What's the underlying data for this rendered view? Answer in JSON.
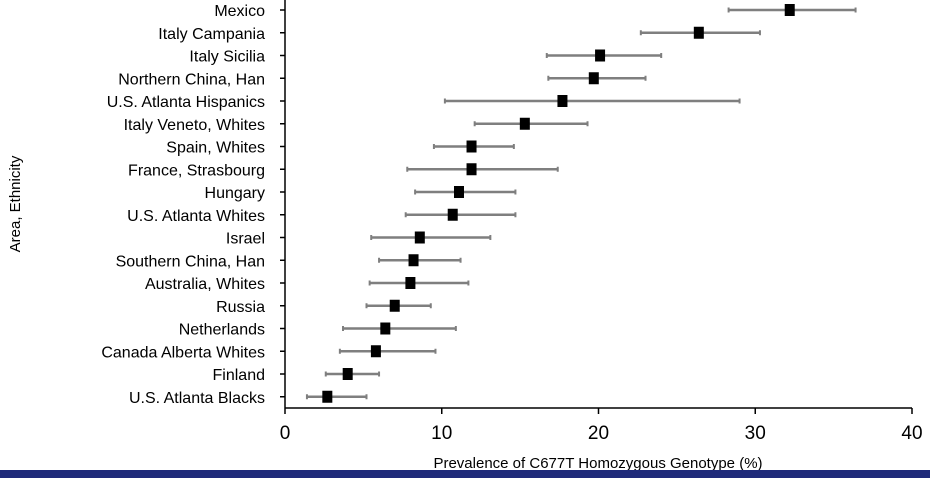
{
  "chart_data": {
    "type": "forest",
    "title": "",
    "xlabel": "Prevalence of C677T Homozygous Genotype (%)",
    "ylabel": "Area, Ethnicity",
    "xlim": [
      0,
      40
    ],
    "xticks": [
      0,
      10,
      20,
      30,
      40
    ],
    "grid": false,
    "rows": [
      {
        "label": "Mexico",
        "value": 32.2,
        "low": 28.3,
        "high": 36.4
      },
      {
        "label": "Italy Campania",
        "value": 26.4,
        "low": 22.7,
        "high": 30.3
      },
      {
        "label": "Italy Sicilia",
        "value": 20.1,
        "low": 16.7,
        "high": 24.0
      },
      {
        "label": "Northern China, Han",
        "value": 19.7,
        "low": 16.8,
        "high": 23.0
      },
      {
        "label": "U.S. Atlanta Hispanics",
        "value": 17.7,
        "low": 10.2,
        "high": 29.0
      },
      {
        "label": "Italy Veneto, Whites",
        "value": 15.3,
        "low": 12.1,
        "high": 19.3
      },
      {
        "label": "Spain, Whites",
        "value": 11.9,
        "low": 9.5,
        "high": 14.6
      },
      {
        "label": "France, Strasbourg",
        "value": 11.9,
        "low": 7.8,
        "high": 17.4
      },
      {
        "label": "Hungary",
        "value": 11.1,
        "low": 8.3,
        "high": 14.7
      },
      {
        "label": "U.S. Atlanta Whites",
        "value": 10.7,
        "low": 7.7,
        "high": 14.7
      },
      {
        "label": "Israel",
        "value": 8.6,
        "low": 5.5,
        "high": 13.1
      },
      {
        "label": "Southern China, Han",
        "value": 8.2,
        "low": 6.0,
        "high": 11.2
      },
      {
        "label": "Australia, Whites",
        "value": 8.0,
        "low": 5.4,
        "high": 11.7
      },
      {
        "label": "Russia",
        "value": 7.0,
        "low": 5.2,
        "high": 9.3
      },
      {
        "label": "Netherlands",
        "value": 6.4,
        "low": 3.7,
        "high": 10.9
      },
      {
        "label": "Canada Alberta Whites",
        "value": 5.8,
        "low": 3.5,
        "high": 9.6
      },
      {
        "label": "Finland",
        "value": 4.0,
        "low": 2.6,
        "high": 6.0
      },
      {
        "label": "U.S. Atlanta Blacks",
        "value": 2.7,
        "low": 1.4,
        "high": 5.2
      }
    ]
  },
  "colors": {
    "point": "#000000",
    "ci_line": "#7f7f7f",
    "axis": "#000000",
    "bottom_band": "#1f2a7a"
  }
}
